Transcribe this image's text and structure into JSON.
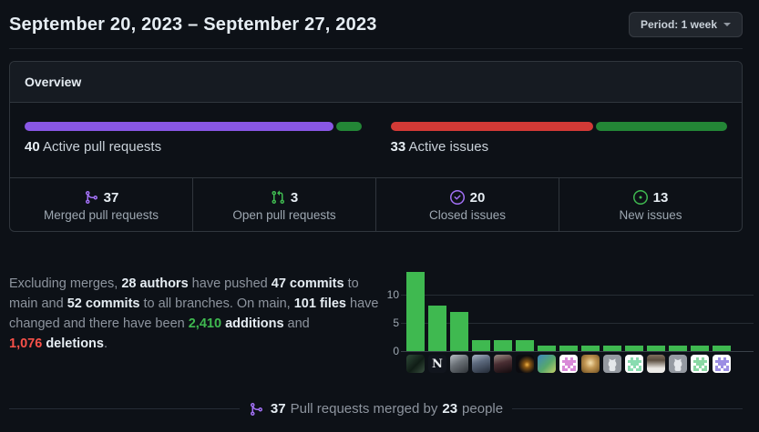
{
  "colors": {
    "background": "#0d1117",
    "panel_border": "#30363d",
    "panel_header_bg": "#161b22",
    "text_primary": "#e6edf3",
    "text_muted": "#8d949e",
    "purple": "#8957e5",
    "purple_bright": "#a371f7",
    "green": "#238636",
    "green_bright": "#3fb950",
    "red": "#d23a36",
    "red_bright": "#f85149"
  },
  "header": {
    "title": "September 20, 2023 – September 27, 2023",
    "period_button_label": "Period: 1 week"
  },
  "overview": {
    "title": "Overview",
    "pull_requests": {
      "count": "40",
      "label": "Active pull requests",
      "segments": [
        {
          "name": "merged",
          "color": "#8957e5",
          "pct": 92.5
        },
        {
          "name": "open",
          "color": "#238636",
          "pct": 7.5
        }
      ]
    },
    "issues": {
      "count": "33",
      "label": "Active issues",
      "segments": [
        {
          "name": "closed",
          "color": "#d23a36",
          "pct": 60.6
        },
        {
          "name": "new",
          "color": "#238636",
          "pct": 39.4
        }
      ]
    },
    "stats": [
      {
        "id": "merged-pull-requests",
        "icon": "git-merge-icon",
        "icon_color": "#a371f7",
        "value": "37",
        "label": "Merged pull requests"
      },
      {
        "id": "open-pull-requests",
        "icon": "git-pull-request-icon",
        "icon_color": "#3fb950",
        "value": "3",
        "label": "Open pull requests"
      },
      {
        "id": "closed-issues",
        "icon": "issue-closed-icon",
        "icon_color": "#a371f7",
        "value": "20",
        "label": "Closed issues"
      },
      {
        "id": "new-issues",
        "icon": "issue-opened-icon",
        "icon_color": "#3fb950",
        "value": "13",
        "label": "New issues"
      }
    ]
  },
  "summary": {
    "segments": [
      {
        "t": "Excluding merges, ",
        "s": "muted"
      },
      {
        "t": "28 authors",
        "s": "bold"
      },
      {
        "t": " have pushed ",
        "s": "muted"
      },
      {
        "t": "47 commits",
        "s": "bold"
      },
      {
        "t": " to",
        "s": "muted"
      },
      {
        "br": true
      },
      {
        "t": "main and ",
        "s": "muted"
      },
      {
        "t": "52 commits",
        "s": "bold"
      },
      {
        "t": " to all branches. On main, ",
        "s": "muted"
      },
      {
        "t": "101 files",
        "s": "bold"
      },
      {
        "t": " have",
        "s": "muted"
      },
      {
        "br": true
      },
      {
        "t": "changed and there have been ",
        "s": "muted"
      },
      {
        "nowrap": [
          {
            "t": "2,410",
            "s": "green-bold"
          },
          {
            "t": " ",
            "s": "muted"
          },
          {
            "t": "additions",
            "s": "bold"
          }
        ]
      },
      {
        "t": " and ",
        "s": "muted"
      },
      {
        "nowrap": [
          {
            "t": "1,076",
            "s": "red-bold"
          },
          {
            "t": " ",
            "s": "muted"
          },
          {
            "t": "deletions",
            "s": "bold"
          }
        ]
      },
      {
        "t": ".",
        "s": "muted"
      }
    ]
  },
  "chart_data": {
    "type": "bar",
    "title": "",
    "xlabel": "",
    "ylabel": "",
    "values": [
      14,
      8,
      7,
      2,
      2,
      2,
      1,
      1,
      1,
      1,
      1,
      1,
      1,
      1,
      1
    ],
    "categories": [
      "contributor-1",
      "contributor-2",
      "contributor-3",
      "contributor-4",
      "contributor-5",
      "contributor-6",
      "contributor-7",
      "contributor-8",
      "contributor-9",
      "contributor-10",
      "contributor-11",
      "contributor-12",
      "contributor-13",
      "contributor-14",
      "contributor-15"
    ],
    "yticks": [
      0,
      5,
      10
    ],
    "ylim": [
      0,
      15.8
    ],
    "bar_color": "#3fb950",
    "grid": true,
    "legend": false
  },
  "contributors": [
    {
      "kind": "photo",
      "bg": "linear-gradient(135deg,#2e4a38 0%,#101d16 55%,#39503f 100%)"
    },
    {
      "kind": "logo",
      "bg": "#11151d",
      "letter": "N",
      "fg": "#e9ecef"
    },
    {
      "kind": "photo",
      "bg": "linear-gradient(150deg,#b9bfc6 0%,#6a7076 45%,#2f3338 100%)"
    },
    {
      "kind": "photo",
      "bg": "linear-gradient(160deg,#aab6c6 0%,#5d6a7e 40%,#232a36 100%)"
    },
    {
      "kind": "photo",
      "bg": "linear-gradient(165deg,#9c8d85 0%,#4a2e33 45%,#120a0d 100%)"
    },
    {
      "kind": "photo",
      "bg": "radial-gradient(circle at 62% 55%, #f0b245 0%, #8a5714 20%, #0b0b10 60%)"
    },
    {
      "kind": "photo",
      "bg": "linear-gradient(135deg,#3c86c0 0%,#57a86b 55%,#c5d06a 100%)"
    },
    {
      "kind": "identicon",
      "bg": "#ffffff",
      "fg": "#d98ad8"
    },
    {
      "kind": "photo",
      "bg": "radial-gradient(circle at 50% 45%, #f4dfae 0%, #c19653 40%, #6e4d1e 100%)"
    },
    {
      "kind": "octocat",
      "bg": "#959aa1",
      "fg": "#e4e7ea"
    },
    {
      "kind": "identicon",
      "bg": "#ffffff",
      "fg": "#89dcb0"
    },
    {
      "kind": "photo",
      "bg": "linear-gradient(180deg,#7e6f5c 0%,#5a4c3e 30%,#eceae6 75%)"
    },
    {
      "kind": "octocat",
      "bg": "#959aa1",
      "fg": "#e4e7ea"
    },
    {
      "kind": "identicon",
      "bg": "#ffffff",
      "fg": "#8ad8a4"
    },
    {
      "kind": "identicon",
      "bg": "#ffffff",
      "fg": "#9c8fe4"
    }
  ],
  "footer": {
    "icon": "git-merge-icon",
    "icon_color": "#a371f7",
    "segments": [
      {
        "t": "37",
        "s": "bold"
      },
      {
        "t": " Pull requests merged by ",
        "s": "muted"
      },
      {
        "t": "23",
        "s": "bold"
      },
      {
        "t": " people",
        "s": "muted"
      }
    ]
  }
}
